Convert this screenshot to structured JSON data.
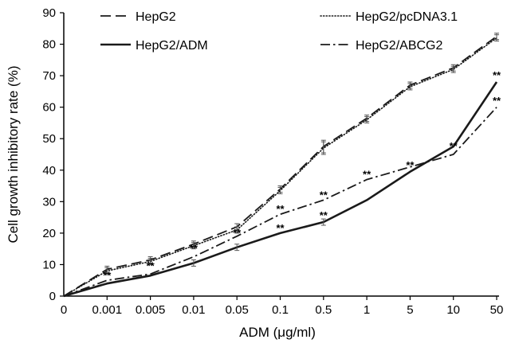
{
  "chart_data": {
    "type": "line",
    "title": "",
    "xlabel": "ADM (μg/ml)",
    "ylabel": "Cell growth inhibitory rate (%)",
    "categories": [
      "0",
      "0.001",
      "0.005",
      "0.01",
      "0.05",
      "0.1",
      "0.5",
      "1",
      "5",
      "10",
      "50"
    ],
    "y_ticks": [
      "0",
      "10",
      "20",
      "30",
      "40",
      "50",
      "60",
      "70",
      "80",
      "90"
    ],
    "ylim": [
      0,
      90
    ],
    "grid": false,
    "legend_position": "top",
    "series": [
      {
        "name": "HepG2",
        "dash": "longdash",
        "values": [
          0,
          8.5,
          11.5,
          16.5,
          22,
          34,
          47.5,
          56.5,
          67,
          72.5,
          82.5
        ],
        "errors": [
          0,
          1,
          1,
          1,
          1,
          1,
          2,
          1,
          1,
          1,
          1
        ]
      },
      {
        "name": "HepG2/pcDNA3.1",
        "dash": "dotted",
        "values": [
          0,
          8,
          11,
          16,
          21,
          33.5,
          47,
          56,
          66.5,
          72,
          82
        ],
        "errors": [
          0,
          1,
          1,
          1,
          1,
          1,
          2,
          1,
          1,
          1,
          1
        ]
      },
      {
        "name": "HepG2/ADM",
        "dash": "solid",
        "values": [
          0,
          4,
          6.5,
          10.5,
          15.5,
          20,
          23.5,
          30.5,
          39.5,
          47.5,
          68
        ],
        "errors": [
          0,
          0,
          0,
          1,
          1,
          0,
          1,
          0,
          0,
          0,
          0
        ]
      },
      {
        "name": "HepG2/ABCG2",
        "dash": "dashdot",
        "values": [
          0,
          5,
          7,
          12.5,
          19,
          26,
          30.5,
          37,
          41,
          45,
          60
        ],
        "errors": [
          0,
          0,
          0,
          0,
          0,
          0,
          0,
          0,
          0,
          0,
          0
        ]
      }
    ],
    "annotations": [
      {
        "text": "**",
        "category_index": 1,
        "y": 6.5
      },
      {
        "text": "**",
        "category_index": 2,
        "y": 9.5
      },
      {
        "text": "**",
        "category_index": 3,
        "y": 15
      },
      {
        "text": "**",
        "category_index": 4,
        "y": 20
      },
      {
        "text": "**",
        "category_index": 5,
        "y": 21.5
      },
      {
        "text": "**",
        "category_index": 5,
        "y": 27.5
      },
      {
        "text": "**",
        "category_index": 6,
        "y": 25.5
      },
      {
        "text": "**",
        "category_index": 6,
        "y": 32
      },
      {
        "text": "**",
        "category_index": 7,
        "y": 38.5
      },
      {
        "text": "**",
        "category_index": 8,
        "y": 41.5
      },
      {
        "text": "**",
        "category_index": 9,
        "y": 47.5
      },
      {
        "text": "**",
        "category_index": 10,
        "y": 70
      },
      {
        "text": "**",
        "category_index": 10,
        "y": 62
      }
    ]
  }
}
